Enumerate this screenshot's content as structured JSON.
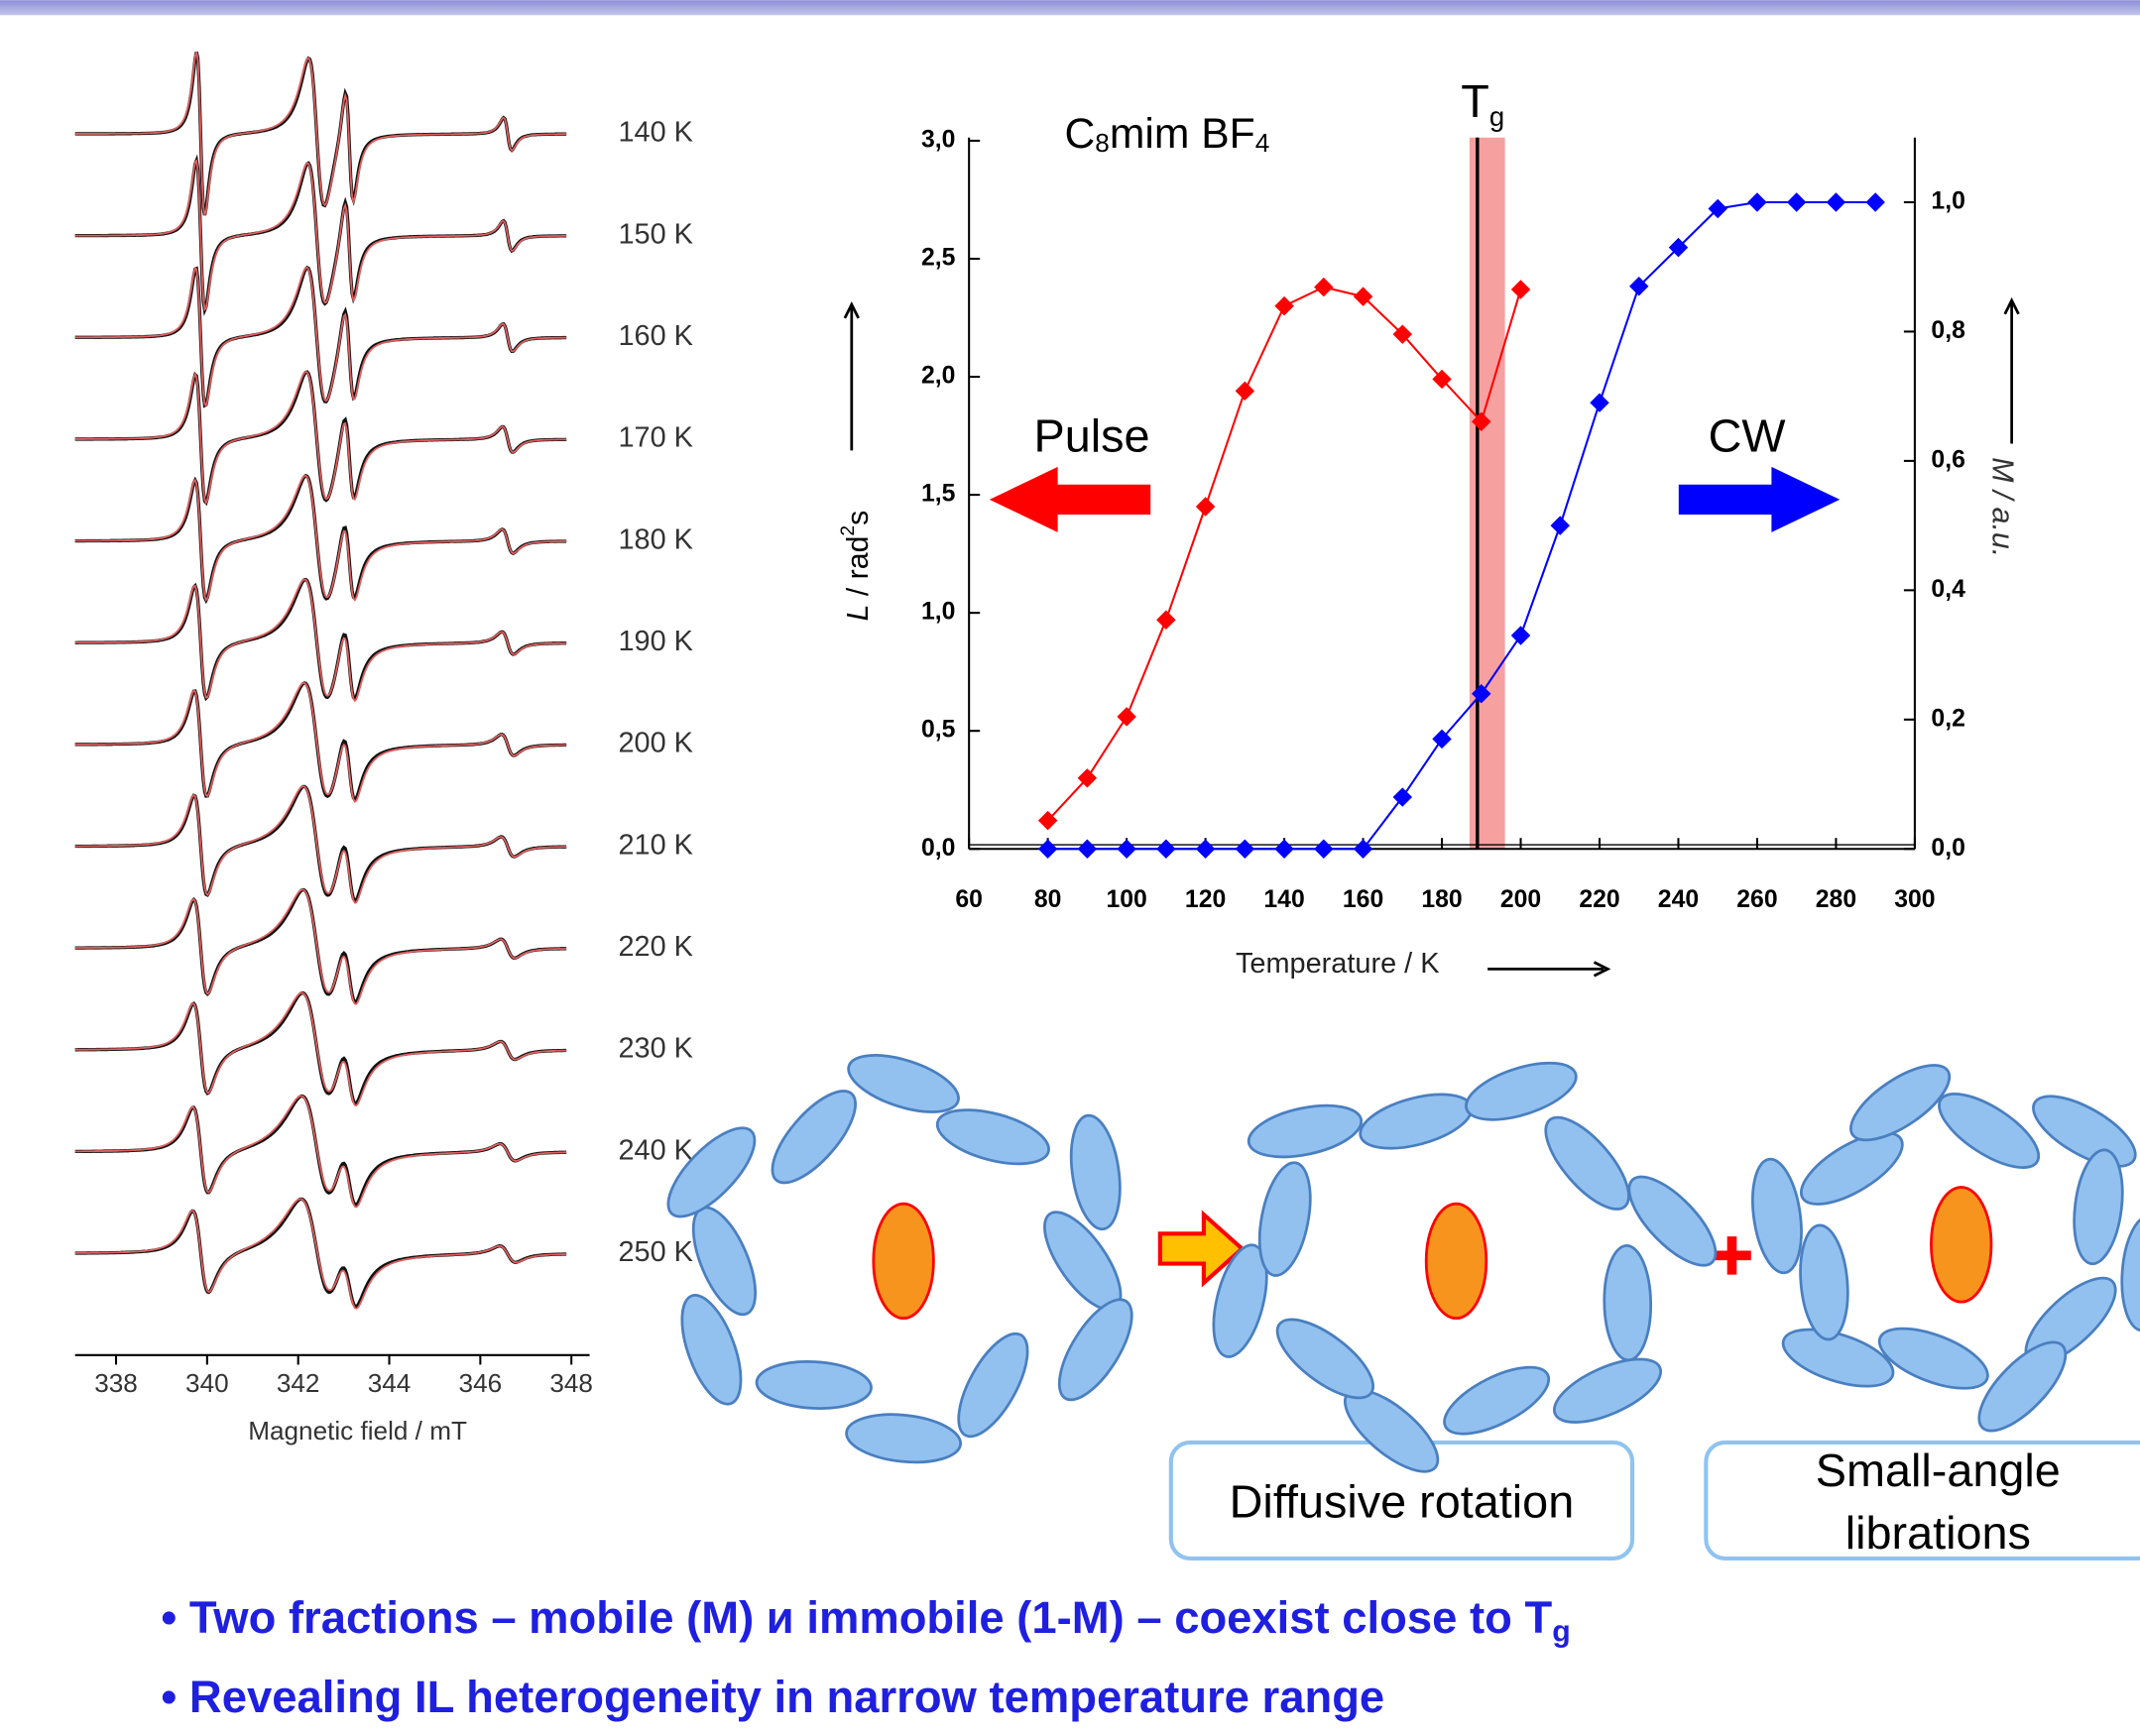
{
  "chart_data": [
    {
      "type": "spectra",
      "categories": [
        "140 K",
        "150 K",
        "160 K",
        "170 K",
        "180 K",
        "190 K",
        "200 K",
        "210 K",
        "220 K",
        "230 K",
        "240 K",
        "250 K"
      ],
      "xlim": [
        337.1,
        348.4
      ],
      "xticks": [
        338,
        340,
        342,
        344,
        346,
        348
      ],
      "xlabel": "Magnetic field / mT"
    },
    {
      "type": "line",
      "title": [
        "C",
        "8",
        "mim BF",
        "4"
      ],
      "xlabel": "Temperature / K",
      "ylabel": [
        "L",
        " / rad",
        "2",
        "s"
      ],
      "y2label": "M / a.u.",
      "xlim": [
        60,
        300
      ],
      "xticks": [
        60,
        80,
        100,
        120,
        140,
        160,
        180,
        200,
        220,
        240,
        260,
        280,
        300
      ],
      "ylim": [
        0,
        3
      ],
      "yticks": [
        {
          "value": 0,
          "label": "0,0"
        },
        {
          "value": 0.5,
          "label": "0,5"
        },
        {
          "value": 1,
          "label": "1,0"
        },
        {
          "value": 1.5,
          "label": "1,5"
        },
        {
          "value": 2,
          "label": "2,0"
        },
        {
          "value": 2.5,
          "label": "2,5"
        },
        {
          "value": 3,
          "label": "3,0"
        }
      ],
      "y2lim": [
        0,
        1.1
      ],
      "y2ticks": [
        {
          "value": 0,
          "label": "0,0"
        },
        {
          "value": 0.2,
          "label": "0,2"
        },
        {
          "value": 0.4,
          "label": "0,4"
        },
        {
          "value": 0.6,
          "label": "0,6"
        },
        {
          "value": 0.8,
          "label": "0,8"
        },
        {
          "value": 1,
          "label": "1,0"
        }
      ],
      "series": [
        {
          "name": "Pulse",
          "color": "#ff0000",
          "x": [
            80,
            90,
            100,
            110,
            120,
            130,
            140,
            150,
            160,
            170,
            180,
            190,
            200
          ],
          "values": [
            0.12,
            0.3,
            0.56,
            0.97,
            1.45,
            1.94,
            2.3,
            2.38,
            2.34,
            2.18,
            1.99,
            1.81,
            2.37
          ]
        },
        {
          "name": "CW",
          "color": "#0000ff",
          "axis": "y2",
          "x": [
            80,
            90,
            100,
            110,
            120,
            130,
            140,
            150,
            160,
            170,
            180,
            190,
            200,
            210,
            220,
            230,
            240,
            250,
            260,
            270,
            280,
            290
          ],
          "values": [
            0,
            0,
            0,
            0,
            0,
            0,
            0,
            0,
            0,
            0.08,
            0.17,
            0.24,
            0.33,
            0.5,
            0.69,
            0.87,
            0.93,
            0.99,
            1,
            1,
            1,
            1
          ]
        }
      ],
      "annotation": {
        "text": "T",
        "sub": "g",
        "x": 189,
        "band": [
          187,
          196
        ]
      }
    }
  ],
  "diagram": {
    "box1": "Diffusive rotation",
    "box2": [
      "Small-angle",
      "librations"
    ]
  },
  "bullets": [
    [
      "Two fractions – mobile (M) и immobile (1-M) – coexist close to T",
      "g"
    ],
    [
      "Revealing IL heterogeneity in narrow temperature range"
    ]
  ]
}
